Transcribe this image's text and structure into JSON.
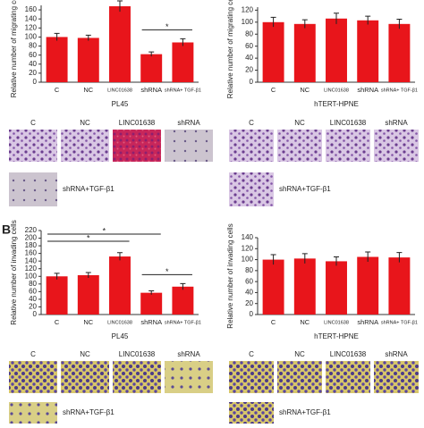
{
  "chart_data": [
    {
      "type": "bar",
      "ylabel": "Relative number of migrating cells",
      "xlabel": "PL45",
      "categories": [
        "C",
        "NC",
        "LINC01638",
        "shRNA",
        "shRNA+ TGF-β1"
      ],
      "series": [
        {
          "color": "#e8151b",
          "values": [
            100,
            98,
            168,
            62,
            88
          ],
          "errors": [
            8,
            6,
            12,
            5,
            8
          ]
        }
      ],
      "ylim": [
        0,
        170
      ],
      "yticks": [
        0,
        20,
        40,
        60,
        80,
        100,
        120,
        140,
        160
      ],
      "annotations": [
        {
          "text": "*",
          "between": [
            "shRNA",
            "shRNA+ TGF-β1"
          ]
        }
      ]
    },
    {
      "type": "bar",
      "ylabel": "Relative number of migrating cells",
      "xlabel": "hTERT-HPNE",
      "categories": [
        "C",
        "NC",
        "LINC01638",
        "shRNA",
        "shRNA+ TGF-β1"
      ],
      "series": [
        {
          "color": "#e8151b",
          "values": [
            100,
            97,
            106,
            103,
            97
          ],
          "errors": [
            8,
            7,
            9,
            7,
            8
          ]
        }
      ],
      "ylim": [
        0,
        125
      ],
      "yticks": [
        0,
        20,
        40,
        60,
        80,
        100,
        120
      ],
      "annotations": []
    },
    {
      "type": "bar",
      "ylabel": "Relative number of invading cells",
      "xlabel": "PL45",
      "categories": [
        "C",
        "NC",
        "LINC01638",
        "shRNA",
        "shRNA+ TGF-β1"
      ],
      "series": [
        {
          "color": "#e8151b",
          "values": [
            100,
            103,
            152,
            57,
            73
          ],
          "errors": [
            8,
            7,
            10,
            5,
            8
          ]
        }
      ],
      "ylim": [
        0,
        220
      ],
      "yticks": [
        0,
        20,
        40,
        60,
        80,
        100,
        120,
        140,
        160,
        180,
        200,
        220
      ],
      "annotations": [
        {
          "text": "*",
          "between": [
            "shRNA",
            "shRNA+ TGF-β1"
          ]
        },
        {
          "text": "*",
          "between": [
            "C",
            "LINC01638"
          ]
        },
        {
          "text": "*",
          "between": [
            "C",
            "shRNA"
          ]
        }
      ]
    },
    {
      "type": "bar",
      "ylabel": "Relative number of invading cells",
      "xlabel": "hTERT-HPNE",
      "categories": [
        "C",
        "NC",
        "LINC01638",
        "shRNA",
        "shRNA+ TGF-β1"
      ],
      "series": [
        {
          "color": "#e8151b",
          "values": [
            100,
            102,
            97,
            105,
            104
          ],
          "errors": [
            9,
            9,
            8,
            9,
            9
          ]
        }
      ],
      "ylim": [
        0,
        140
      ],
      "yticks": [
        0,
        20,
        40,
        60,
        80,
        100,
        120,
        140
      ],
      "annotations": []
    }
  ],
  "panel_labels": [
    "B"
  ],
  "micrographs": [
    [
      "C",
      "NC",
      "LINC01638",
      "shRNA",
      "shRNA+TGF-β1"
    ],
    [
      "C",
      "NC",
      "LINC01638",
      "shRNA",
      "shRNA+TGF-β1"
    ],
    [
      "C",
      "NC",
      "LINC01638",
      "shRNA",
      "shRNA+TGF-β1"
    ],
    [
      "C",
      "NC",
      "LINC01638",
      "shRNA",
      "shRNA+TGF-β1"
    ]
  ]
}
